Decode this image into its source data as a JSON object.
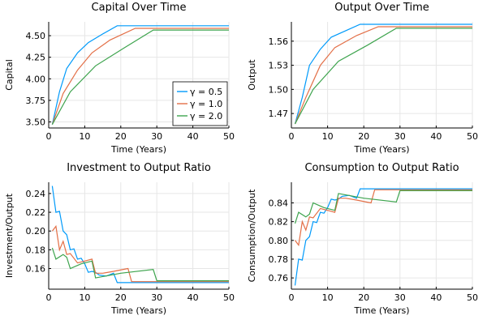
{
  "colors": {
    "s1": "#009AFA",
    "s2": "#E36F47",
    "s3": "#3EA44E",
    "grid": "#e6e6e6",
    "axis": "#000000"
  },
  "chart_data": [
    {
      "type": "line",
      "title": "Capital Over Time",
      "xlabel": "Time (Years)",
      "ylabel": "Capital",
      "xlim": [
        0,
        50
      ],
      "ylim": [
        3.43,
        4.66
      ],
      "xticks": [
        0,
        10,
        20,
        30,
        40,
        50
      ],
      "yticks": [
        3.5,
        3.75,
        4.0,
        4.25,
        4.5
      ],
      "ytick_labels": [
        "3.50",
        "3.75",
        "4.00",
        "4.25",
        "4.50"
      ],
      "legend": "bottom-right",
      "series": [
        {
          "name": "γ = 0.5",
          "color": "s1",
          "points": [
            [
              1,
              3.47
            ],
            [
              3,
              3.85
            ],
            [
              5,
              4.12
            ],
            [
              8,
              4.3
            ],
            [
              11,
              4.42
            ],
            [
              15,
              4.52
            ],
            [
              19,
              4.615
            ],
            [
              22,
              4.615
            ],
            [
              30,
              4.615
            ],
            [
              40,
              4.615
            ],
            [
              50,
              4.615
            ]
          ]
        },
        {
          "name": "γ = 1.0",
          "color": "s2",
          "points": [
            [
              1,
              3.47
            ],
            [
              4,
              3.83
            ],
            [
              8,
              4.1
            ],
            [
              12,
              4.3
            ],
            [
              17,
              4.45
            ],
            [
              24,
              4.585
            ],
            [
              30,
              4.585
            ],
            [
              40,
              4.585
            ],
            [
              50,
              4.585
            ]
          ]
        },
        {
          "name": "γ = 2.0",
          "color": "s3",
          "points": [
            [
              1,
              3.47
            ],
            [
              6,
              3.85
            ],
            [
              13,
              4.15
            ],
            [
              21,
              4.36
            ],
            [
              29,
              4.565
            ],
            [
              35,
              4.565
            ],
            [
              40,
              4.565
            ],
            [
              50,
              4.565
            ]
          ]
        }
      ]
    },
    {
      "type": "line",
      "title": "Output Over Time",
      "xlabel": "Time (Years)",
      "ylabel": "Output",
      "xlim": [
        0,
        50
      ],
      "ylim": [
        1.452,
        1.584
      ],
      "xticks": [
        0,
        10,
        20,
        30,
        40,
        50
      ],
      "yticks": [
        1.47,
        1.5,
        1.53,
        1.56
      ],
      "ytick_labels": [
        "1.47",
        "1.50",
        "1.53",
        "1.56"
      ],
      "series": [
        {
          "name": "γ = 0.5",
          "color": "s1",
          "points": [
            [
              1,
              1.457
            ],
            [
              3,
              1.49
            ],
            [
              5,
              1.53
            ],
            [
              8,
              1.55
            ],
            [
              11,
              1.565
            ],
            [
              15,
              1.573
            ],
            [
              19,
              1.581
            ],
            [
              25,
              1.581
            ],
            [
              35,
              1.581
            ],
            [
              50,
              1.581
            ]
          ]
        },
        {
          "name": "γ = 1.0",
          "color": "s2",
          "points": [
            [
              1,
              1.457
            ],
            [
              4,
              1.49
            ],
            [
              8,
              1.53
            ],
            [
              12,
              1.552
            ],
            [
              18,
              1.567
            ],
            [
              24,
              1.578
            ],
            [
              35,
              1.578
            ],
            [
              50,
              1.578
            ]
          ]
        },
        {
          "name": "γ = 2.0",
          "color": "s3",
          "points": [
            [
              1,
              1.457
            ],
            [
              6,
              1.5
            ],
            [
              13,
              1.535
            ],
            [
              21,
              1.555
            ],
            [
              29,
              1.576
            ],
            [
              40,
              1.576
            ],
            [
              50,
              1.576
            ]
          ]
        }
      ]
    },
    {
      "type": "line",
      "title": "Investment to Output Ratio",
      "xlabel": "Time (Years)",
      "ylabel": "Investment/Output",
      "xlim": [
        0,
        50
      ],
      "ylim": [
        0.138,
        0.252
      ],
      "xticks": [
        0,
        10,
        20,
        30,
        40,
        50
      ],
      "yticks": [
        0.16,
        0.18,
        0.2,
        0.22,
        0.24
      ],
      "ytick_labels": [
        "0.16",
        "0.18",
        "0.20",
        "0.22",
        "0.24"
      ],
      "series": [
        {
          "name": "γ = 0.5",
          "color": "s1",
          "points": [
            [
              1,
              0.248
            ],
            [
              2,
              0.22
            ],
            [
              3,
              0.221
            ],
            [
              4,
              0.2
            ],
            [
              5,
              0.196
            ],
            [
              6,
              0.18
            ],
            [
              7,
              0.181
            ],
            [
              8,
              0.17
            ],
            [
              9,
              0.171
            ],
            [
              10,
              0.165
            ],
            [
              11,
              0.156
            ],
            [
              12,
              0.157
            ],
            [
              13,
              0.156
            ],
            [
              14,
              0.153
            ],
            [
              16,
              0.152
            ],
            [
              18,
              0.155
            ],
            [
              19,
              0.145
            ],
            [
              25,
              0.145
            ],
            [
              35,
              0.145
            ],
            [
              50,
              0.145
            ]
          ]
        },
        {
          "name": "γ = 1.0",
          "color": "s2",
          "points": [
            [
              1,
              0.2
            ],
            [
              2,
              0.205
            ],
            [
              3,
              0.18
            ],
            [
              4,
              0.189
            ],
            [
              5,
              0.175
            ],
            [
              6,
              0.176
            ],
            [
              8,
              0.166
            ],
            [
              10,
              0.168
            ],
            [
              12,
              0.17
            ],
            [
              13,
              0.155
            ],
            [
              15,
              0.155
            ],
            [
              18,
              0.157
            ],
            [
              22,
              0.16
            ],
            [
              23,
              0.146
            ],
            [
              30,
              0.146
            ],
            [
              40,
              0.146
            ],
            [
              50,
              0.146
            ]
          ]
        },
        {
          "name": "γ = 2.0",
          "color": "s3",
          "points": [
            [
              1,
              0.182
            ],
            [
              2,
              0.17
            ],
            [
              4,
              0.175
            ],
            [
              5,
              0.172
            ],
            [
              6,
              0.16
            ],
            [
              9,
              0.165
            ],
            [
              12,
              0.168
            ],
            [
              13,
              0.15
            ],
            [
              20,
              0.155
            ],
            [
              29,
              0.159
            ],
            [
              30,
              0.147
            ],
            [
              40,
              0.147
            ],
            [
              50,
              0.147
            ]
          ]
        }
      ]
    },
    {
      "type": "line",
      "title": "Consumption to Output Ratio",
      "xlabel": "Time (Years)",
      "ylabel": "Consumption/Output",
      "xlim": [
        0,
        50
      ],
      "ylim": [
        0.748,
        0.862
      ],
      "xticks": [
        0,
        10,
        20,
        30,
        40,
        50
      ],
      "yticks": [
        0.76,
        0.78,
        0.8,
        0.82,
        0.84
      ],
      "ytick_labels": [
        "0.76",
        "0.78",
        "0.80",
        "0.82",
        "0.84"
      ],
      "series": [
        {
          "name": "γ = 0.5",
          "color": "s1",
          "points": [
            [
              1,
              0.752
            ],
            [
              2,
              0.78
            ],
            [
              3,
              0.779
            ],
            [
              4,
              0.8
            ],
            [
              5,
              0.804
            ],
            [
              6,
              0.82
            ],
            [
              7,
              0.819
            ],
            [
              8,
              0.83
            ],
            [
              9,
              0.829
            ],
            [
              10,
              0.835
            ],
            [
              11,
              0.844
            ],
            [
              12,
              0.843
            ],
            [
              13,
              0.844
            ],
            [
              14,
              0.847
            ],
            [
              16,
              0.848
            ],
            [
              18,
              0.845
            ],
            [
              19,
              0.855
            ],
            [
              25,
              0.855
            ],
            [
              35,
              0.855
            ],
            [
              50,
              0.855
            ]
          ]
        },
        {
          "name": "γ = 1.0",
          "color": "s2",
          "points": [
            [
              1,
              0.8
            ],
            [
              2,
              0.795
            ],
            [
              3,
              0.82
            ],
            [
              4,
              0.811
            ],
            [
              5,
              0.825
            ],
            [
              6,
              0.824
            ],
            [
              8,
              0.834
            ],
            [
              10,
              0.832
            ],
            [
              12,
              0.83
            ],
            [
              13,
              0.845
            ],
            [
              15,
              0.845
            ],
            [
              18,
              0.843
            ],
            [
              22,
              0.84
            ],
            [
              23,
              0.854
            ],
            [
              30,
              0.854
            ],
            [
              40,
              0.854
            ],
            [
              50,
              0.854
            ]
          ]
        },
        {
          "name": "γ = 2.0",
          "color": "s3",
          "points": [
            [
              1,
              0.818
            ],
            [
              2,
              0.83
            ],
            [
              4,
              0.825
            ],
            [
              5,
              0.828
            ],
            [
              6,
              0.84
            ],
            [
              9,
              0.835
            ],
            [
              12,
              0.832
            ],
            [
              13,
              0.85
            ],
            [
              20,
              0.845
            ],
            [
              29,
              0.841
            ],
            [
              30,
              0.853
            ],
            [
              40,
              0.853
            ],
            [
              50,
              0.853
            ]
          ]
        }
      ]
    }
  ]
}
